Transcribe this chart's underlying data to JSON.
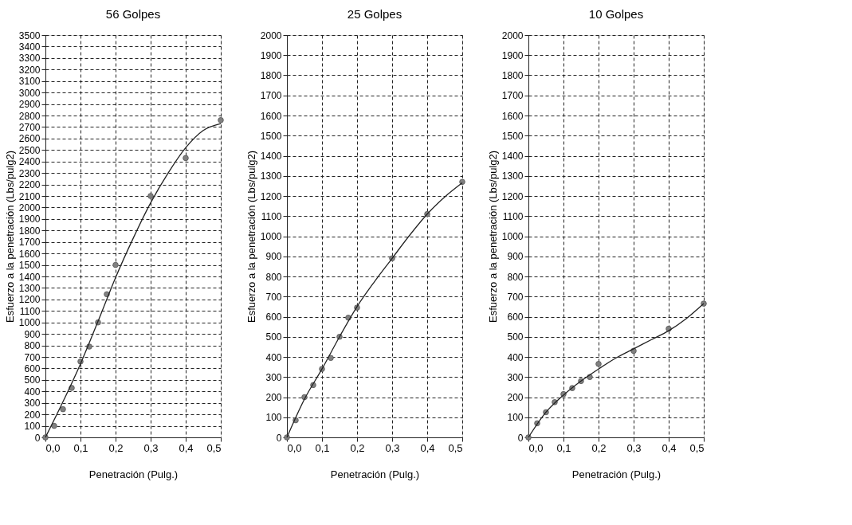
{
  "chart_data": [
    {
      "type": "scatter",
      "title": "56 Golpes",
      "xlabel": "Penetración (Pulg.)",
      "ylabel": "Esfuerzo a la penetración (Lbs/pulg2)",
      "series": [
        {
          "color": "#808080",
          "x": [
            0,
            0.025,
            0.05,
            0.075,
            0.1,
            0.125,
            0.15,
            0.175,
            0.2,
            0.3,
            0.4,
            0.5
          ],
          "values": [
            0,
            100,
            245,
            430,
            660,
            790,
            1000,
            1245,
            1500,
            2100,
            2430,
            2760
          ]
        },
        {
          "type": "line",
          "color": "#222222",
          "marker": "none",
          "line_style": "solid",
          "x": [
            0,
            0.05,
            0.1,
            0.15,
            0.2,
            0.25,
            0.3,
            0.35,
            0.4,
            0.45,
            0.5
          ],
          "values": [
            0,
            310,
            640,
            1010,
            1390,
            1730,
            2040,
            2300,
            2520,
            2670,
            2730
          ]
        }
      ],
      "xlim": [
        0,
        0.5
      ],
      "xticks": [
        {
          "value": 0,
          "label": "0,0"
        },
        {
          "value": 0.1,
          "label": "0,1"
        },
        {
          "value": 0.2,
          "label": "0,2"
        },
        {
          "value": 0.3,
          "label": "0,3"
        },
        {
          "value": 0.4,
          "label": "0,4"
        },
        {
          "value": 0.5,
          "label": "0,5"
        }
      ],
      "marker": "circle",
      "ylim": [
        0,
        3500
      ],
      "yticks": [
        0,
        100,
        200,
        300,
        400,
        500,
        600,
        700,
        800,
        900,
        1000,
        1100,
        1200,
        1300,
        1400,
        1500,
        1600,
        1700,
        1800,
        1900,
        2000,
        2100,
        2200,
        2300,
        2400,
        2500,
        2600,
        2700,
        2800,
        2900,
        3000,
        3100,
        3200,
        3300,
        3400,
        3500
      ],
      "grid": true
    },
    {
      "type": "scatter",
      "title": "25 Golpes",
      "xlabel": "Penetración (Pulg.)",
      "ylabel": "Esfuerzo a la penetración (Lbs/pulg2)",
      "series": [
        {
          "color": "#808080",
          "x": [
            0,
            0.025,
            0.05,
            0.075,
            0.1,
            0.125,
            0.15,
            0.175,
            0.2,
            0.3,
            0.4,
            0.5
          ],
          "values": [
            0,
            85,
            200,
            260,
            340,
            395,
            500,
            595,
            645,
            890,
            1110,
            1270
          ]
        },
        {
          "type": "line",
          "color": "#222222",
          "marker": "none",
          "line_style": "solid",
          "x": [
            0,
            0.05,
            0.1,
            0.15,
            0.2,
            0.25,
            0.3,
            0.35,
            0.4,
            0.45,
            0.5
          ],
          "values": [
            0,
            190,
            340,
            500,
            650,
            775,
            890,
            1005,
            1110,
            1195,
            1265
          ]
        }
      ],
      "xlim": [
        0,
        0.5
      ],
      "xticks": [
        {
          "value": 0,
          "label": "0,0"
        },
        {
          "value": 0.1,
          "label": "0,1"
        },
        {
          "value": 0.2,
          "label": "0,2"
        },
        {
          "value": 0.3,
          "label": "0,3"
        },
        {
          "value": 0.4,
          "label": "0,4"
        },
        {
          "value": 0.5,
          "label": "0,5"
        }
      ],
      "marker": "circle",
      "ylim": [
        0,
        2000
      ],
      "yticks": [
        0,
        100,
        200,
        300,
        400,
        500,
        600,
        700,
        800,
        900,
        1000,
        1100,
        1200,
        1300,
        1400,
        1500,
        1600,
        1700,
        1800,
        1900,
        2000
      ],
      "grid": true
    },
    {
      "type": "scatter",
      "marker": "circle",
      "title": "10 Golpes",
      "xlabel": "Penetración (Pulg.)",
      "ylabel": "Esfuerzo a la penetración (Lbs/pulg2)",
      "series": [
        {
          "color": "#808080",
          "x": [
            0,
            0.025,
            0.05,
            0.075,
            0.1,
            0.125,
            0.15,
            0.175,
            0.2,
            0.3,
            0.4,
            0.5
          ],
          "values": [
            0,
            70,
            125,
            175,
            215,
            245,
            280,
            300,
            365,
            430,
            540,
            665
          ]
        },
        {
          "type": "line",
          "color": "#222222",
          "marker": "none",
          "line_style": "solid",
          "x": [
            0,
            0.05,
            0.1,
            0.15,
            0.2,
            0.25,
            0.3,
            0.35,
            0.4,
            0.45,
            0.5
          ],
          "values": [
            0,
            125,
            210,
            280,
            340,
            395,
            440,
            485,
            530,
            590,
            665
          ]
        }
      ],
      "xlim": [
        0,
        0.5
      ],
      "xticks": [
        {
          "value": 0,
          "label": "0,0"
        },
        {
          "value": 0.1,
          "label": "0,1"
        },
        {
          "value": 0.2,
          "label": "0,2"
        },
        {
          "value": 0.3,
          "label": "0,3"
        },
        {
          "value": 0.4,
          "label": "0,4"
        },
        {
          "value": 0.5,
          "label": "0,5"
        }
      ],
      "ylim": [
        0,
        2000
      ],
      "yticks": [
        0,
        100,
        200,
        300,
        400,
        500,
        600,
        700,
        800,
        900,
        1000,
        1100,
        1200,
        1300,
        1400,
        1500,
        1600,
        1700,
        1800,
        1900,
        2000
      ],
      "grid": true
    }
  ]
}
